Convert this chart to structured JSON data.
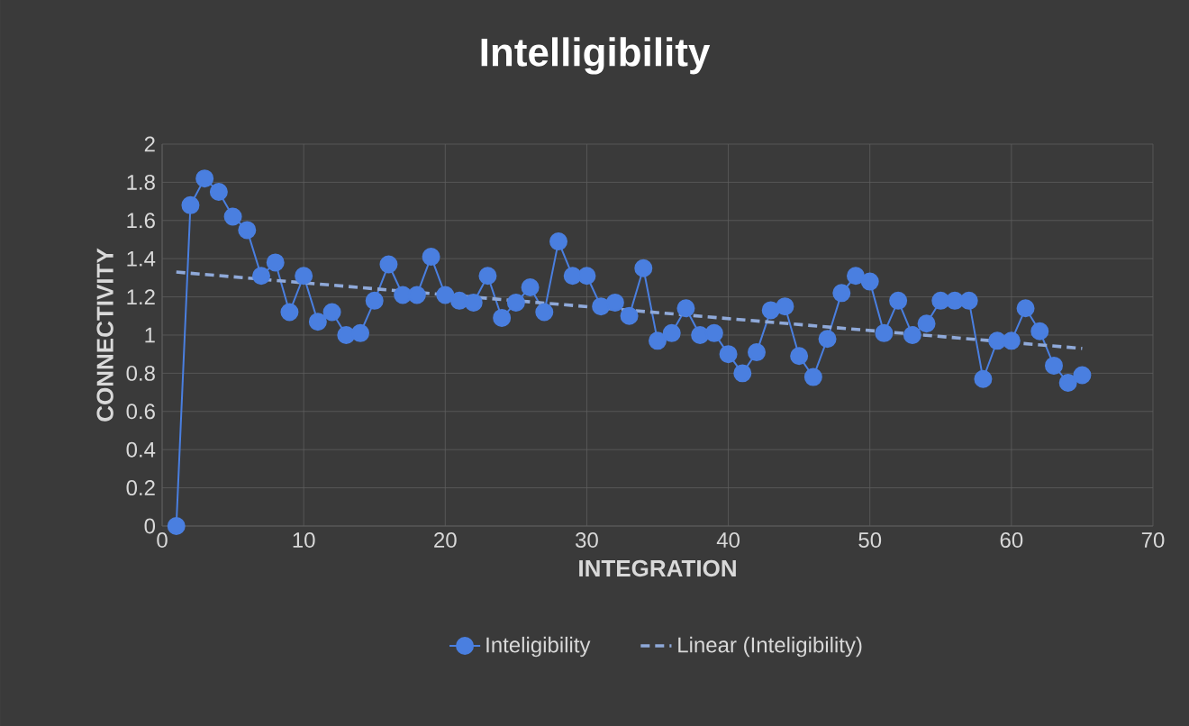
{
  "chart_data": {
    "type": "line",
    "title": "Intelligibility",
    "xlabel": "INTEGRATION",
    "ylabel": "CONNECTIVITY",
    "xlim": [
      0,
      70
    ],
    "xticks": [
      0,
      10,
      20,
      30,
      40,
      50,
      60,
      70
    ],
    "ylim": [
      0,
      2
    ],
    "yticks": [
      0,
      0.2,
      0.4,
      0.6,
      0.8,
      1,
      1.2,
      1.4,
      1.6,
      1.8,
      2
    ],
    "grid": true,
    "legend": "bottom",
    "series": [
      {
        "name": "Inteligibility",
        "color": "#4a7fe0",
        "marker": "circle",
        "x": [
          1,
          2,
          3,
          4,
          5,
          6,
          7,
          8,
          9,
          10,
          11,
          12,
          13,
          14,
          15,
          16,
          17,
          18,
          19,
          20,
          21,
          22,
          23,
          24,
          25,
          26,
          27,
          28,
          29,
          30,
          31,
          32,
          33,
          34,
          35,
          36,
          37,
          38,
          39,
          40,
          41,
          42,
          43,
          44,
          45,
          46,
          47,
          48,
          49,
          50,
          51,
          52,
          53,
          54,
          55,
          56,
          57,
          58,
          59,
          60,
          61,
          62,
          63,
          64,
          65
        ],
        "values": [
          0,
          1.68,
          1.82,
          1.75,
          1.62,
          1.55,
          1.31,
          1.38,
          1.12,
          1.31,
          1.07,
          1.12,
          1.0,
          1.01,
          1.18,
          1.37,
          1.21,
          1.21,
          1.41,
          1.21,
          1.18,
          1.17,
          1.31,
          1.09,
          1.17,
          1.25,
          1.12,
          1.49,
          1.31,
          1.31,
          1.15,
          1.17,
          1.1,
          1.35,
          0.97,
          1.01,
          1.14,
          1.0,
          1.01,
          0.9,
          0.8,
          0.91,
          1.13,
          1.15,
          0.89,
          0.78,
          0.98,
          1.22,
          1.31,
          1.28,
          1.01,
          1.18,
          1.0,
          1.06,
          1.18,
          1.18,
          1.18,
          0.77,
          0.97,
          0.97,
          1.14,
          1.02,
          0.84,
          0.75,
          0.79
        ]
      },
      {
        "name": "Linear (Inteligibility)",
        "type": "line",
        "color": "#8fa9d9",
        "line_style": "dashed",
        "x": [
          1,
          65
        ],
        "values": [
          1.33,
          0.93
        ]
      }
    ]
  }
}
